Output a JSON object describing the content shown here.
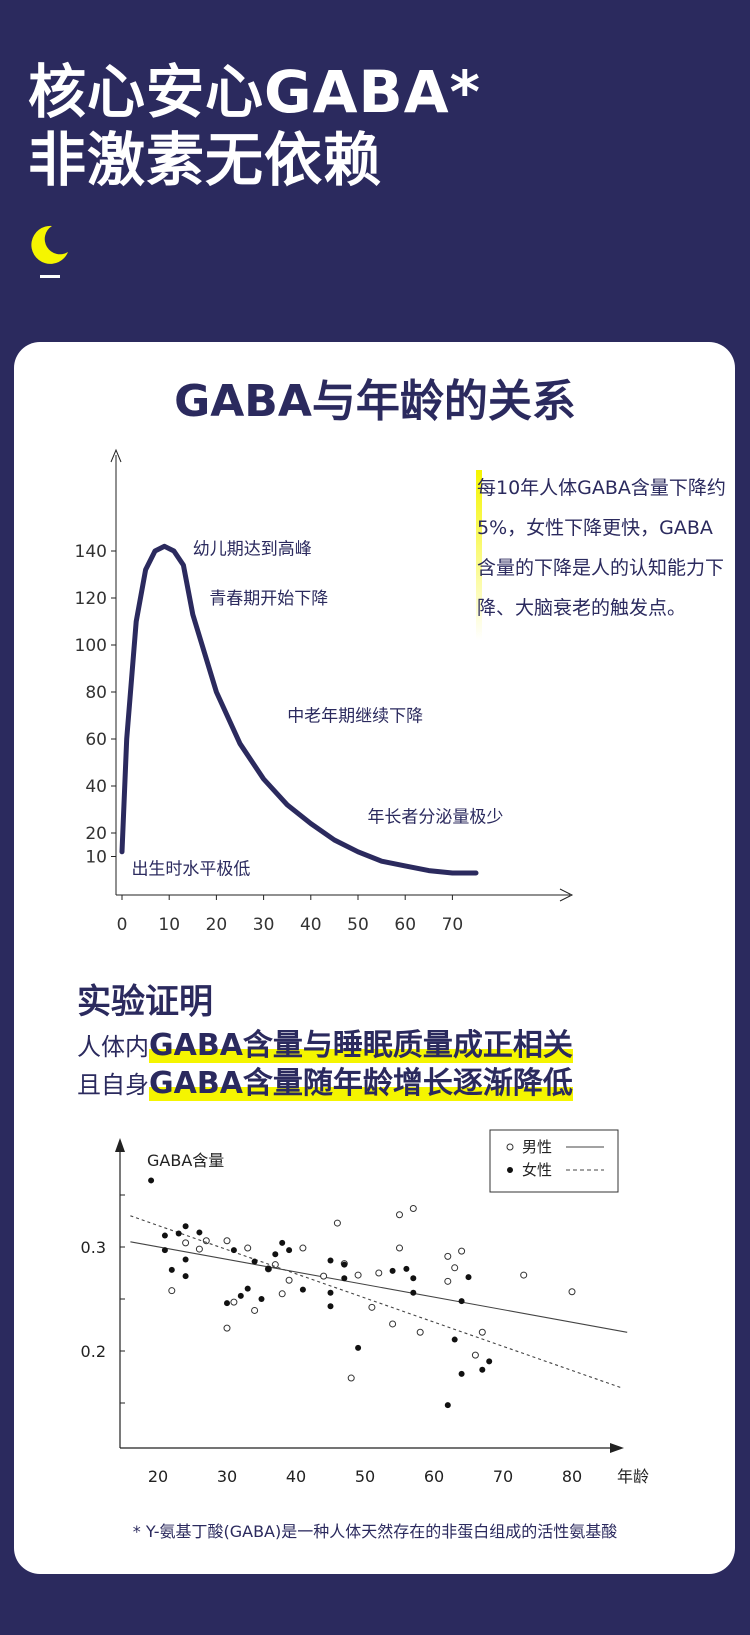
{
  "hero": {
    "line1": "核心安心GABA*",
    "line2": "非激素无依赖"
  },
  "colors": {
    "navy": "#2b2a5e",
    "accent": "#f5f500"
  },
  "card": {
    "title": "GABA与年龄的关系"
  },
  "note": {
    "text": "每10年人体GABA含量下降约5%，女性下降更快，GABA含量的下降是人的认知能力下降、大脑衰老的触发点。"
  },
  "section": {
    "title": "实验证明",
    "line1_prefix": "人体内",
    "line1_highlight": "GABA含量与睡眠质量成正相关",
    "line2_prefix": "且自身",
    "line2_highlight": "GABA含量随年龄增长逐渐降低"
  },
  "footnote": "* Y-氨基丁酸(GABA)是一种人体天然存在的非蛋白组成的活性氨基酸",
  "chart_data": [
    {
      "type": "line",
      "x_ticks": [
        0,
        10,
        20,
        30,
        40,
        50,
        60,
        70
      ],
      "y_ticks": [
        10,
        20,
        40,
        60,
        80,
        100,
        120,
        140
      ],
      "series": [
        {
          "x": [
            0,
            1,
            3,
            5,
            7,
            9,
            11,
            13,
            15,
            20,
            25,
            30,
            35,
            40,
            45,
            50,
            55,
            60,
            65,
            70,
            75
          ],
          "y": [
            12,
            60,
            110,
            132,
            140,
            142,
            140,
            134,
            113,
            80,
            58,
            43,
            32,
            24,
            17,
            12,
            8,
            6,
            4,
            3,
            3
          ]
        }
      ],
      "annotations": [
        {
          "text": "幼儿期达到高峰",
          "x": 15,
          "y": 141
        },
        {
          "text": "青春期开始下降",
          "x": 18.5,
          "y": 120
        },
        {
          "text": "中老年期继续下降",
          "x": 35,
          "y": 70
        },
        {
          "text": "年长者分泌量极少",
          "x": 52,
          "y": 27
        },
        {
          "text": "出生时水平极低",
          "x": 2,
          "y": 5
        }
      ]
    },
    {
      "type": "scatter",
      "ylabel": "GABA含量",
      "xlabel": "年龄",
      "x_ticks": [
        20,
        30,
        40,
        50,
        60,
        70,
        80
      ],
      "y_ticks": [
        0.2,
        0.3
      ],
      "legend": {
        "position": "top-right",
        "entries": [
          "男性",
          "女性"
        ]
      },
      "series": [
        {
          "name": "男性",
          "marker": "open",
          "line": "solid",
          "trend": [
            [
              16,
              0.305
            ],
            [
              88,
              0.218
            ]
          ],
          "points": [
            [
              22,
              0.258
            ],
            [
              24,
              0.304
            ],
            [
              26,
              0.298
            ],
            [
              27,
              0.306
            ],
            [
              30,
              0.306
            ],
            [
              30,
              0.222
            ],
            [
              31,
              0.247
            ],
            [
              33,
              0.299
            ],
            [
              34,
              0.239
            ],
            [
              36,
              0.279
            ],
            [
              37,
              0.283
            ],
            [
              38,
              0.255
            ],
            [
              39,
              0.268
            ],
            [
              41,
              0.299
            ],
            [
              44,
              0.272
            ],
            [
              46,
              0.323
            ],
            [
              47,
              0.284
            ],
            [
              48,
              0.174
            ],
            [
              49,
              0.273
            ],
            [
              51,
              0.242
            ],
            [
              52,
              0.275
            ],
            [
              54,
              0.226
            ],
            [
              55,
              0.299
            ],
            [
              55,
              0.331
            ],
            [
              57,
              0.337
            ],
            [
              58,
              0.218
            ],
            [
              62,
              0.267
            ],
            [
              62,
              0.291
            ],
            [
              63,
              0.28
            ],
            [
              64,
              0.296
            ],
            [
              66,
              0.196
            ],
            [
              67,
              0.218
            ],
            [
              73,
              0.273
            ],
            [
              80,
              0.257
            ]
          ]
        },
        {
          "name": "女性",
          "marker": "filled",
          "line": "dashed",
          "trend": [
            [
              16,
              0.33
            ],
            [
              87,
              0.165
            ]
          ],
          "points": [
            [
              19,
              0.364
            ],
            [
              21,
              0.297
            ],
            [
              21,
              0.311
            ],
            [
              22,
              0.278
            ],
            [
              23,
              0.313
            ],
            [
              24,
              0.32
            ],
            [
              24,
              0.272
            ],
            [
              24,
              0.288
            ],
            [
              26,
              0.314
            ],
            [
              30,
              0.246
            ],
            [
              31,
              0.297
            ],
            [
              32,
              0.253
            ],
            [
              33,
              0.26
            ],
            [
              34,
              0.286
            ],
            [
              35,
              0.25
            ],
            [
              36,
              0.279
            ],
            [
              37,
              0.293
            ],
            [
              38,
              0.304
            ],
            [
              39,
              0.297
            ],
            [
              41,
              0.259
            ],
            [
              45,
              0.287
            ],
            [
              45,
              0.256
            ],
            [
              45,
              0.243
            ],
            [
              47,
              0.27
            ],
            [
              47,
              0.283
            ],
            [
              49,
              0.203
            ],
            [
              54,
              0.277
            ],
            [
              56,
              0.279
            ],
            [
              57,
              0.256
            ],
            [
              57,
              0.27
            ],
            [
              62,
              0.148
            ],
            [
              63,
              0.211
            ],
            [
              64,
              0.248
            ],
            [
              64,
              0.178
            ],
            [
              65,
              0.271
            ],
            [
              67,
              0.182
            ],
            [
              68,
              0.19
            ]
          ]
        }
      ]
    }
  ]
}
